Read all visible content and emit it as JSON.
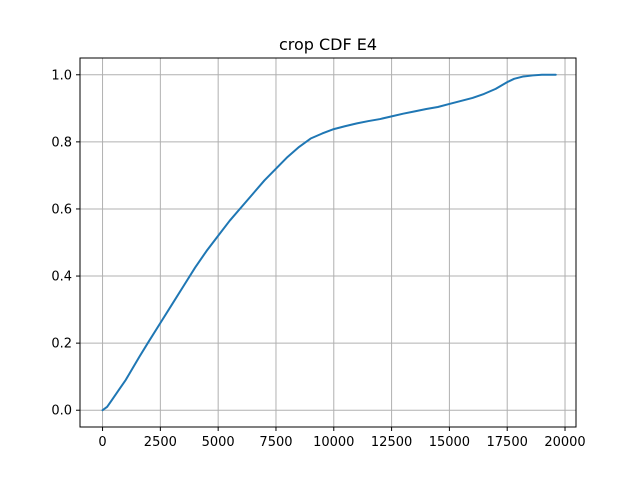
{
  "chart_data": {
    "type": "line",
    "title": "crop CDF E4",
    "xlabel": "",
    "ylabel": "",
    "xlim": [
      -975,
      20475
    ],
    "ylim": [
      -0.05,
      1.05
    ],
    "grid": true,
    "line_color": "#1f77b4",
    "grid_color": "#b0b0b0",
    "x_ticks": [
      0,
      2500,
      5000,
      7500,
      10000,
      12500,
      15000,
      17500,
      20000
    ],
    "x_tick_labels": [
      "0",
      "2500",
      "5000",
      "7500",
      "10000",
      "12500",
      "15000",
      "17500",
      "20000"
    ],
    "y_ticks": [
      0.0,
      0.2,
      0.4,
      0.6,
      0.8,
      1.0
    ],
    "y_tick_labels": [
      "0.0",
      "0.2",
      "0.4",
      "0.6",
      "0.8",
      "1.0"
    ],
    "series": [
      {
        "x": [
          0,
          200,
          400,
          700,
          1000,
          1300,
          1600,
          2000,
          2500,
          3000,
          3500,
          4000,
          4500,
          5000,
          5500,
          6000,
          6500,
          7000,
          7500,
          8000,
          8500,
          9000,
          9500,
          9800,
          10000,
          10500,
          11000,
          11500,
          12000,
          12500,
          13000,
          13500,
          14000,
          14500,
          15000,
          15500,
          16000,
          16500,
          17000,
          17500,
          17800,
          18200,
          18600,
          19000,
          19600
        ],
        "y": [
          0.0,
          0.01,
          0.03,
          0.06,
          0.09,
          0.125,
          0.16,
          0.205,
          0.26,
          0.315,
          0.37,
          0.425,
          0.475,
          0.52,
          0.565,
          0.605,
          0.645,
          0.685,
          0.72,
          0.755,
          0.785,
          0.81,
          0.825,
          0.833,
          0.838,
          0.847,
          0.855,
          0.862,
          0.868,
          0.876,
          0.884,
          0.891,
          0.898,
          0.904,
          0.913,
          0.922,
          0.931,
          0.943,
          0.958,
          0.978,
          0.988,
          0.995,
          0.998,
          1.0,
          1.0
        ]
      }
    ]
  }
}
